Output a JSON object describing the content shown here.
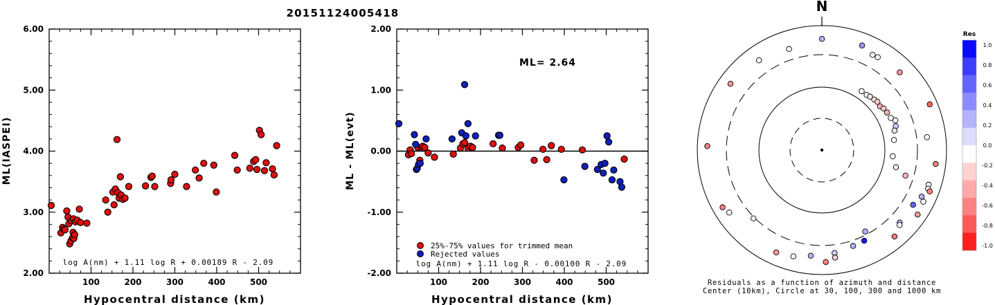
{
  "page": {
    "title": "20151124005418"
  },
  "chart_data": [
    {
      "type": "scatter",
      "xlabel": "Hypocentral distance (km)",
      "ylabel": "ML(IASPEI)",
      "xlim": [
        0,
        600
      ],
      "ylim": [
        2.0,
        6.0
      ],
      "xticks": [
        100,
        200,
        300,
        400,
        500
      ],
      "yticks": [
        "2.00",
        "3.00",
        "4.00",
        "5.00",
        "6.00"
      ],
      "annotation": "log A(nm) + 1.11 log R + 0.00189 R - 2.09",
      "series": [
        {
          "color": "#dd1111",
          "points": [
            [
              5,
              3.11
            ],
            [
              28,
              2.66
            ],
            [
              32,
              2.75
            ],
            [
              35,
              2.72
            ],
            [
              38,
              2.71
            ],
            [
              42,
              3.02
            ],
            [
              45,
              2.92
            ],
            [
              47,
              2.81
            ],
            [
              49,
              2.48
            ],
            [
              52,
              2.53
            ],
            [
              53,
              2.86
            ],
            [
              56,
              2.58
            ],
            [
              57,
              2.67
            ],
            [
              58,
              2.89
            ],
            [
              59,
              2.57
            ],
            [
              61,
              2.63
            ],
            [
              63,
              2.84
            ],
            [
              67,
              2.87
            ],
            [
              72,
              3.05
            ],
            [
              75,
              2.83
            ],
            [
              90,
              2.82
            ],
            [
              135,
              3.2
            ],
            [
              140,
              3.0
            ],
            [
              152,
              3.33
            ],
            [
              155,
              3.12
            ],
            [
              158,
              3.38
            ],
            [
              162,
              4.19
            ],
            [
              164,
              3.32
            ],
            [
              167,
              3.23
            ],
            [
              170,
              3.58
            ],
            [
              172,
              3.28
            ],
            [
              176,
              3.21
            ],
            [
              181,
              3.23
            ],
            [
              190,
              3.42
            ],
            [
              230,
              3.43
            ],
            [
              243,
              3.57
            ],
            [
              246,
              3.59
            ],
            [
              252,
              3.42
            ],
            [
              290,
              3.47
            ],
            [
              291,
              3.53
            ],
            [
              300,
              3.62
            ],
            [
              328,
              3.42
            ],
            [
              349,
              3.69
            ],
            [
              358,
              3.56
            ],
            [
              369,
              3.8
            ],
            [
              393,
              3.77
            ],
            [
              399,
              3.33
            ],
            [
              443,
              3.93
            ],
            [
              449,
              3.69
            ],
            [
              479,
              3.72
            ],
            [
              488,
              3.83
            ],
            [
              493,
              3.86
            ],
            [
              496,
              3.7
            ],
            [
              502,
              4.34
            ],
            [
              506,
              4.27
            ],
            [
              514,
              3.68
            ],
            [
              518,
              3.81
            ],
            [
              533,
              3.71
            ],
            [
              537,
              3.61
            ],
            [
              543,
              4.09
            ]
          ]
        }
      ]
    },
    {
      "type": "scatter",
      "xlabel": "Hypocentral distance (km)",
      "ylabel": "ML - ML(evt)",
      "xlim": [
        0,
        600
      ],
      "ylim": [
        -2.0,
        2.0
      ],
      "xticks": [
        100,
        200,
        300,
        400,
        500
      ],
      "yticks": [
        "-2.00",
        "-1.00",
        "0.00",
        "1.00",
        "2.00"
      ],
      "ml_label": "ML= 2.64",
      "legend": [
        "25%-75% values for trimmed mean",
        "Rejected values"
      ],
      "annotation": "log A(nm) + 1.11 log R - 0.00100 R - 2.09",
      "series": [
        {
          "name": "25%-75% values for trimmed mean",
          "color": "#dd1111",
          "points": [
            [
              28,
              -0.06
            ],
            [
              32,
              0.02
            ],
            [
              35,
              -0.04
            ],
            [
              50,
              0.06
            ],
            [
              55,
              -0.15
            ],
            [
              60,
              0.05
            ],
            [
              62,
              0.08
            ],
            [
              67,
              0.06
            ],
            [
              75,
              -0.03
            ],
            [
              90,
              -0.1
            ],
            [
              135,
              -0.05
            ],
            [
              152,
              0.05
            ],
            [
              158,
              0.12
            ],
            [
              162,
              0.14
            ],
            [
              170,
              0.05
            ],
            [
              176,
              0.08
            ],
            [
              181,
              0.06
            ],
            [
              230,
              0.12
            ],
            [
              252,
              0.05
            ],
            [
              290,
              0.06
            ],
            [
              296,
              0.1
            ],
            [
              328,
              -0.15
            ],
            [
              349,
              0.03
            ],
            [
              358,
              -0.14
            ],
            [
              369,
              0.09
            ],
            [
              393,
              0.03
            ],
            [
              443,
              0.02
            ],
            [
              543,
              -0.13
            ]
          ]
        },
        {
          "name": "Rejected values",
          "color": "#1020bb",
          "points": [
            [
              5,
              0.45
            ],
            [
              42,
              0.27
            ],
            [
              45,
              0.11
            ],
            [
              47,
              -0.3
            ],
            [
              49,
              -0.28
            ],
            [
              52,
              -0.22
            ],
            [
              56,
              -0.2
            ],
            [
              70,
              0.2
            ],
            [
              132,
              0.2
            ],
            [
              155,
              0.3
            ],
            [
              162,
              1.09
            ],
            [
              165,
              0.25
            ],
            [
              170,
              0.45
            ],
            [
              188,
              0.25
            ],
            [
              243,
              0.26
            ],
            [
              246,
              0.26
            ],
            [
              399,
              -0.47
            ],
            [
              449,
              -0.25
            ],
            [
              479,
              -0.3
            ],
            [
              488,
              -0.22
            ],
            [
              493,
              -0.36
            ],
            [
              497,
              -0.2
            ],
            [
              502,
              0.25
            ],
            [
              506,
              0.15
            ],
            [
              514,
              -0.47
            ],
            [
              518,
              -0.31
            ],
            [
              533,
              -0.5
            ],
            [
              537,
              -0.59
            ]
          ]
        }
      ]
    },
    {
      "type": "scatter",
      "subtype": "polar",
      "north_label": "N",
      "caption_line1": "Residuals as a function of azimuth and distance",
      "caption_line2": "Center (10km), Circle at 30, 100, 300 and 1000 km",
      "colorbar": {
        "title": "Res",
        "ticks": [
          "1.0",
          "0.8",
          "0.6",
          "0.4",
          "0.2",
          "0.0",
          "-0.2",
          "-0.4",
          "-0.6",
          "-0.8",
          "-1.0"
        ],
        "colors": [
          "#0a0aff",
          "#3d3dff",
          "#6464ff",
          "#8b8bff",
          "#b3b3ff",
          "#dcdcff",
          "#ffffff",
          "#ffd2d2",
          "#ffaaaa",
          "#ff8282",
          "#ff5a5a",
          "#ff1e1e"
        ]
      },
      "rings_km": [
        30,
        100,
        300,
        1000
      ],
      "points": [
        {
          "azimuth_deg": 0,
          "distance_km": 680,
          "residual": 0.3
        },
        {
          "azimuth_deg": 21,
          "distance_km": 700,
          "residual": 0.4
        },
        {
          "azimuth_deg": 28,
          "distance_km": 600,
          "residual": 0.0
        },
        {
          "azimuth_deg": 31,
          "distance_km": 610,
          "residual": 0.0
        },
        {
          "azimuth_deg": 45,
          "distance_km": 650,
          "residual": -0.4
        },
        {
          "azimuth_deg": 67,
          "distance_km": 820,
          "residual": -0.6
        },
        {
          "azimuth_deg": 97,
          "distance_km": 760,
          "residual": -0.5
        },
        {
          "azimuth_deg": 83,
          "distance_km": 550,
          "residual": 0.0
        },
        {
          "azimuth_deg": 108,
          "distance_km": 700,
          "residual": 0.0
        },
        {
          "azimuth_deg": 110,
          "distance_km": 720,
          "residual": 0.0
        },
        {
          "azimuth_deg": 111,
          "distance_km": 780,
          "residual": -0.5
        },
        {
          "azimuth_deg": 115,
          "distance_km": 650,
          "residual": 0.3
        },
        {
          "azimuth_deg": 117,
          "distance_km": 740,
          "residual": 0.0
        },
        {
          "azimuth_deg": 124,
          "distance_km": 780,
          "residual": -0.4
        },
        {
          "azimuth_deg": 121,
          "distance_km": 560,
          "residual": 0.6
        },
        {
          "azimuth_deg": 133,
          "distance_km": 560,
          "residual": 0.3
        },
        {
          "azimuth_deg": 134,
          "distance_km": 600,
          "residual": 0.0
        },
        {
          "azimuth_deg": 140,
          "distance_km": 720,
          "residual": -0.5
        },
        {
          "azimuth_deg": 152,
          "distance_km": 280,
          "residual": 0.3
        },
        {
          "azimuth_deg": 155,
          "distance_km": 410,
          "residual": 0.9
        },
        {
          "azimuth_deg": 162,
          "distance_km": 430,
          "residual": 0.3
        },
        {
          "azimuth_deg": 173,
          "distance_km": 500,
          "residual": 0.2
        },
        {
          "azimuth_deg": 173,
          "distance_km": 610,
          "residual": -0.2
        },
        {
          "azimuth_deg": 178,
          "distance_km": 700,
          "residual": -0.5
        },
        {
          "azimuth_deg": 186,
          "distance_km": 560,
          "residual": 0.3
        },
        {
          "azimuth_deg": 195,
          "distance_km": 650,
          "residual": 0.0
        },
        {
          "azimuth_deg": 204,
          "distance_km": 700,
          "residual": -0.4
        },
        {
          "azimuth_deg": 225,
          "distance_km": 330,
          "residual": 0.0
        },
        {
          "azimuth_deg": 236,
          "distance_km": 690,
          "residual": 0.0
        },
        {
          "azimuth_deg": 240,
          "distance_km": 760,
          "residual": -0.5
        },
        {
          "azimuth_deg": 272,
          "distance_km": 760,
          "residual": -0.5
        },
        {
          "azimuth_deg": 306,
          "distance_km": 720,
          "residual": -0.4
        },
        {
          "azimuth_deg": 325,
          "distance_km": 640,
          "residual": 0.0
        },
        {
          "azimuth_deg": 342,
          "distance_km": 560,
          "residual": 0.0
        },
        {
          "azimuth_deg": 34,
          "distance_km": 150,
          "residual": 0.0
        },
        {
          "azimuth_deg": 39,
          "distance_km": 150,
          "residual": 0.0
        },
        {
          "azimuth_deg": 42,
          "distance_km": 155,
          "residual": -0.1
        },
        {
          "azimuth_deg": 46,
          "distance_km": 160,
          "residual": -0.1
        },
        {
          "azimuth_deg": 49,
          "distance_km": 165,
          "residual": -0.2
        },
        {
          "azimuth_deg": 53,
          "distance_km": 160,
          "residual": -0.3
        },
        {
          "azimuth_deg": 56,
          "distance_km": 170,
          "residual": -0.2
        },
        {
          "azimuth_deg": 60,
          "distance_km": 175,
          "residual": -0.3
        },
        {
          "azimuth_deg": 65,
          "distance_km": 180,
          "residual": 0.0
        },
        {
          "azimuth_deg": 68,
          "distance_km": 200,
          "residual": 0.0
        },
        {
          "azimuth_deg": 72,
          "distance_km": 190,
          "residual": 0.2
        },
        {
          "azimuth_deg": 75,
          "distance_km": 175,
          "residual": 0.1
        },
        {
          "azimuth_deg": 82,
          "distance_km": 160,
          "residual": 0.0
        },
        {
          "azimuth_deg": 95,
          "distance_km": 150,
          "residual": 0.0
        },
        {
          "azimuth_deg": 103,
          "distance_km": 180,
          "residual": -0.1
        },
        {
          "azimuth_deg": 107,
          "distance_km": 250,
          "residual": -0.3
        }
      ]
    }
  ]
}
